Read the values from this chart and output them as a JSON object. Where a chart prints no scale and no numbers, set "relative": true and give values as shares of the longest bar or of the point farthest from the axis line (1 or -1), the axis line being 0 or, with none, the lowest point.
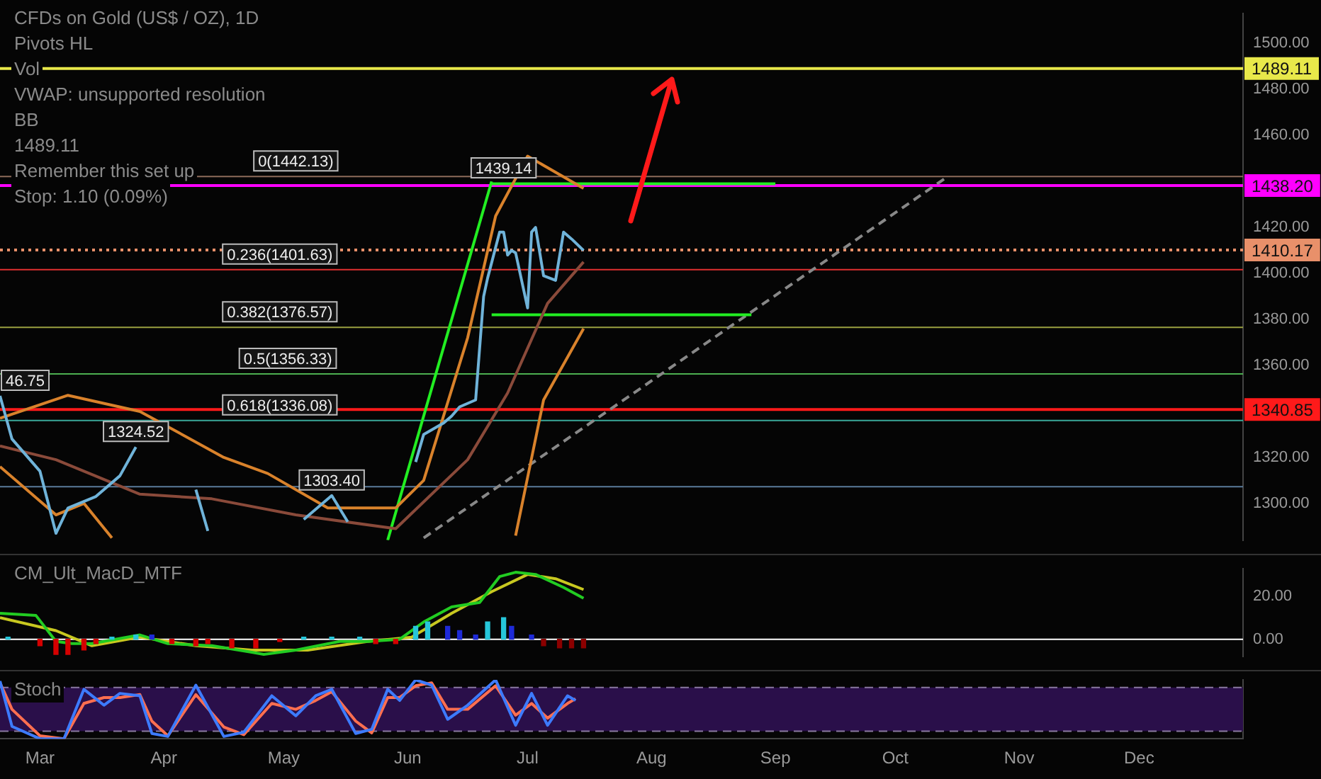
{
  "chart_data": [
    {
      "type": "line",
      "title": "CFDs on Gold (US$ / OZ), 1D",
      "annotations": [
        "Pivots HL",
        "Vol",
        "VWAP: unsupported resolution",
        "BB",
        {
          "text": "46.75",
          "x": "--02-19",
          "y": 1346.75
        },
        {
          "text": "1324.52",
          "x": "--03-25",
          "y": 1324.52
        },
        {
          "text": "1303.40",
          "x": "--05-13",
          "y": 1303.4
        },
        {
          "text": "1439.14",
          "x": "--06-25",
          "y": 1439.14
        },
        "1489.11",
        {
          "text": "0(1442.13)",
          "x": "--05-04",
          "y": 1442.13
        },
        {
          "text": "0.236(1401.63)",
          "x": "--04-30",
          "y": 1401.63
        },
        {
          "text": "0.382(1376.57)",
          "x": "--04-30",
          "y": 1376.57
        },
        {
          "text": "0.5(1356.33)",
          "x": "--05-02",
          "y": 1356.33
        },
        {
          "text": "0.618(1336.08)",
          "x": "--04-30",
          "y": 1336.08
        },
        "Remember this set up",
        "Stop: 1.10 (0.09%)"
      ],
      "xlim": [
        "--02-19",
        "--12-27"
      ],
      "ylim": [
        1284,
        1513
      ],
      "yticks": [
        {
          "value": 1300,
          "label": "1300.00"
        },
        {
          "value": 1320,
          "label": "1320.00"
        },
        {
          "value": 1360,
          "label": "1360.00"
        },
        {
          "value": 1380,
          "label": "1380.00"
        },
        {
          "value": 1400,
          "label": "1400.00"
        },
        {
          "value": 1420,
          "label": "1420.00"
        },
        {
          "value": 1460,
          "label": "1460.00"
        },
        {
          "value": 1480,
          "label": "1480.00"
        },
        {
          "value": 1500,
          "label": "1500.00"
        }
      ],
      "tick_labels": "y",
      "legend": false,
      "ref_lines": [
        {
          "axis": "y",
          "value": 1442.13,
          "color": "#8c6a5a"
        },
        {
          "axis": "y",
          "value": 1401.63,
          "color": "#e03030"
        },
        {
          "axis": "y",
          "value": 1376.57,
          "color": "#9aa040"
        },
        {
          "axis": "y",
          "value": 1356.33,
          "color": "#4caf50"
        },
        {
          "axis": "y",
          "value": 1336.08,
          "color": "#3aa89a"
        },
        {
          "axis": "y",
          "value": 1307.25,
          "color": "#5a7a9a"
        },
        {
          "axis": "y",
          "value": 1489.11,
          "label": "1489.11",
          "color": "#e8e84a"
        },
        {
          "axis": "y",
          "value": 1438.2,
          "label": "1438.20",
          "color": "#ff00ff"
        },
        {
          "axis": "y",
          "value": 1410.17,
          "label": "1410.17",
          "color": "#e8906a",
          "line_style": "dotted"
        },
        {
          "axis": "y",
          "value": 1340.85,
          "label": "1340.85",
          "color": "#ff1a1a"
        }
      ],
      "series": [
        {
          "color": "#6fb3d9",
          "x": [
            "--02-19",
            "--02-22",
            "--03-01",
            "--03-05",
            "--03-08",
            "--03-15",
            "--03-21",
            "--03-25",
            "--03-28",
            "--04-02",
            "--04-05",
            "--04-09",
            "--04-12",
            "--04-23",
            "--05-06",
            "--05-13",
            "--05-17",
            "--05-24",
            "--06-03",
            "--06-05",
            "--06-10",
            "--06-12",
            "--06-14",
            "--06-18",
            "--06-20",
            "--06-21",
            "--06-24",
            "--06-25",
            "--06-26",
            "--06-27",
            "--06-28",
            "--07-01",
            "--07-02",
            "--07-03",
            "--07-05",
            "--07-08",
            "--07-10",
            "--07-12",
            "--07-15"
          ],
          "values": [
            1346.75,
            1328,
            1314,
            1287,
            1298,
            1303,
            1312,
            1324.52,
            null,
            null,
            null,
            1306,
            1288,
            null,
            1293,
            1303.4,
            1292,
            null,
            1318,
            1330,
            1335,
            1338,
            1342,
            1345,
            1390,
            1398,
            1418,
            1418,
            1408,
            1410,
            1409,
            1385,
            1418,
            1420,
            1399,
            1397,
            1418,
            1415,
            1410
          ]
        },
        {
          "color": "#d9822b",
          "x": [
            "--02-19",
            "--03-08",
            "--03-26",
            "--04-16",
            "--04-27",
            "--05-12",
            "--05-29",
            "--06-05",
            "--06-16",
            "--06-23",
            "--07-01",
            "--07-10",
            "--07-15"
          ],
          "values": [
            1337,
            1347,
            1340,
            1320,
            1313,
            1298,
            1298,
            1310,
            1372,
            1425,
            1451,
            1442,
            1437
          ]
        },
        {
          "color": "#8a4a3a",
          "x": [
            "--02-19",
            "--03-05",
            "--03-26",
            "--04-13",
            "--05-04",
            "--05-29",
            "--06-16",
            "--06-26",
            "--07-06",
            "--07-15"
          ],
          "values": [
            1325,
            1319,
            1304,
            1302,
            1295,
            1289,
            1319,
            1348,
            1387,
            1405
          ]
        },
        {
          "color": "#d9822b",
          "x": [
            "--02-19",
            "--03-05",
            "--03-12",
            "--03-19",
            "--04-01",
            "--06-28",
            "--07-05",
            "--07-15"
          ],
          "values": [
            1316,
            1295,
            1300,
            1285,
            null,
            1286,
            1345,
            1376
          ]
        },
        {
          "color": "#22ee22",
          "x": [
            "--05-27",
            "--06-22"
          ],
          "values": [
            1284,
            1440
          ]
        },
        {
          "color": "#22ee22",
          "x": [
            "--06-22",
            "--09-01"
          ],
          "values": [
            1439,
            1439
          ]
        },
        {
          "color": "#22ee22",
          "x": [
            "--06-22",
            "--08-26"
          ],
          "values": [
            1382,
            1382
          ]
        },
        {
          "color": "#888888",
          "line_style": "dashed",
          "x": [
            "--06-05",
            "--10-14"
          ],
          "values": [
            1285,
            1442
          ]
        }
      ]
    },
    {
      "type": "line",
      "title": "CM_Ult_MacD_MTF",
      "xlim": [
        "--02-19",
        "--12-27"
      ],
      "ylim": [
        -7.9,
        32.6
      ],
      "yticks": [
        {
          "value": 0,
          "label": "0.00"
        },
        {
          "value": 20,
          "label": "20.00"
        }
      ],
      "tick_labels": "y",
      "legend": false,
      "ref_lines": [
        {
          "axis": "y",
          "value": 0,
          "color": "#ffffff"
        }
      ],
      "series": [
        {
          "type": "bar",
          "x": [
            "--02-21",
            "--03-01",
            "--03-05",
            "--03-08",
            "--03-12",
            "--03-15",
            "--03-19",
            "--03-25",
            "--03-29",
            "--04-03",
            "--04-09",
            "--04-12",
            "--04-18",
            "--04-24",
            "--04-30",
            "--05-06",
            "--05-13",
            "--05-20",
            "--05-24",
            "--05-29",
            "--06-03",
            "--06-06",
            "--06-11",
            "--06-14",
            "--06-18",
            "--06-21",
            "--06-25",
            "--06-27",
            "--07-02",
            "--07-05",
            "--07-09",
            "--07-12",
            "--07-15"
          ],
          "values": [
            1,
            -3,
            -7,
            -7,
            -5,
            -2,
            1,
            2,
            2,
            -2,
            -3,
            -2,
            -4,
            -4,
            -1,
            1,
            1,
            1,
            -2,
            -2,
            6,
            8,
            6,
            4,
            2,
            8,
            10,
            6,
            2,
            -3,
            -4,
            -4,
            -4
          ],
          "colors": [
            "#26c6da",
            "#d50000",
            "#d50000",
            "#d50000",
            "#d50000",
            "#d50000",
            "#26c6da",
            "#26c6da",
            "#1e2ad8",
            "#d50000",
            "#d50000",
            "#d50000",
            "#d50000",
            "#d50000",
            "#d50000",
            "#26c6da",
            "#26c6da",
            "#26c6da",
            "#d50000",
            "#d50000",
            "#26c6da",
            "#26c6da",
            "#1e2ad8",
            "#1e2ad8",
            "#1e2ad8",
            "#26c6da",
            "#26c6da",
            "#1e2ad8",
            "#1e2ad8",
            "#8b0000",
            "#8b0000",
            "#8b0000",
            "#8b0000"
          ]
        },
        {
          "color": "#22cc22",
          "x": [
            "--02-19",
            "--02-28",
            "--03-05",
            "--03-09",
            "--03-14",
            "--03-26",
            "--04-02",
            "--04-13",
            "--04-23",
            "--04-26",
            "--05-04",
            "--05-15",
            "--05-22",
            "--05-30",
            "--06-05",
            "--06-12",
            "--06-19",
            "--06-24",
            "--06-28",
            "--07-03",
            "--07-10",
            "--07-15"
          ],
          "values": [
            12,
            11,
            -1,
            -2,
            -2,
            2,
            -2,
            -3,
            -6,
            -7,
            -5,
            -1,
            -1,
            0,
            8,
            15,
            17,
            29,
            31,
            30,
            24,
            19
          ]
        },
        {
          "color": "#c8c820",
          "x": [
            "--02-19",
            "--03-05",
            "--03-14",
            "--03-26",
            "--04-09",
            "--04-23",
            "--05-07",
            "--05-22",
            "--06-02",
            "--06-12",
            "--06-22",
            "--07-01",
            "--07-08",
            "--07-15"
          ],
          "values": [
            10,
            4,
            -3,
            1,
            -3,
            -5,
            -5,
            -1,
            1,
            12,
            22,
            30,
            28,
            23
          ]
        }
      ]
    },
    {
      "type": "line",
      "title": "Stoch",
      "relative": true,
      "xlim": [
        "--02-19",
        "--12-27"
      ],
      "xticks": [
        {
          "value": "--03-01",
          "label": "Mar"
        },
        {
          "value": "--04-01",
          "label": "Apr"
        },
        {
          "value": "--05-01",
          "label": "May"
        },
        {
          "value": "--06-01",
          "label": "Jun"
        },
        {
          "value": "--07-01",
          "label": "Jul"
        },
        {
          "value": "--08-01",
          "label": "Aug"
        },
        {
          "value": "--09-01",
          "label": "Sep"
        },
        {
          "value": "--10-01",
          "label": "Oct"
        },
        {
          "value": "--11-01",
          "label": "Nov"
        },
        {
          "value": "--12-01",
          "label": "Dec"
        }
      ],
      "tick_labels": "x",
      "legend": false,
      "bands": [
        {
          "axis": "y",
          "from": 0.13,
          "to": 0.87,
          "color": "#2a0f4a"
        }
      ],
      "ref_lines": [
        {
          "axis": "y",
          "value": 0.13,
          "color": "#8a7aa0",
          "line_style": "dashed"
        },
        {
          "axis": "y",
          "value": 0.87,
          "color": "#8a7aa0",
          "line_style": "dashed"
        }
      ],
      "series": [
        {
          "color": "#3d7bff",
          "x": [
            "--02-19",
            "--02-22",
            "--03-01",
            "--03-07",
            "--03-12",
            "--03-17",
            "--03-21",
            "--03-26",
            "--03-29",
            "--04-02",
            "--04-09",
            "--04-16",
            "--04-21",
            "--04-28",
            "--05-04",
            "--05-09",
            "--05-13",
            "--05-19",
            "--05-23",
            "--05-27",
            "--05-30",
            "--06-03",
            "--06-07",
            "--06-11",
            "--06-16",
            "--06-23",
            "--06-28",
            "--07-02",
            "--07-06",
            "--07-11",
            "--07-13"
          ],
          "values": [
            0.98,
            0.21,
            0,
            0,
            0.84,
            0.57,
            0.77,
            0.73,
            0.09,
            0.04,
            0.91,
            0.04,
            0.11,
            0.73,
            0.39,
            0.73,
            0.84,
            0.09,
            0.16,
            0.84,
            0.65,
            1,
            0.91,
            0.33,
            0.57,
            1,
            0.23,
            0.77,
            0.23,
            0.73,
            0.65
          ]
        },
        {
          "color": "#ff6f50",
          "x": [
            "--02-19",
            "--02-22",
            "--03-01",
            "--03-07",
            "--03-12",
            "--03-17",
            "--03-21",
            "--03-26",
            "--03-29",
            "--04-02",
            "--04-09",
            "--04-16",
            "--04-21",
            "--04-28",
            "--05-04",
            "--05-09",
            "--05-13",
            "--05-19",
            "--05-23",
            "--05-27",
            "--05-30",
            "--06-03",
            "--06-07",
            "--06-11",
            "--06-16",
            "--06-23",
            "--06-28",
            "--07-02",
            "--07-06",
            "--07-11",
            "--07-13"
          ],
          "values": [
            0.95,
            0.5,
            0.05,
            0,
            0.6,
            0.7,
            0.7,
            0.75,
            0.3,
            0.05,
            0.75,
            0.2,
            0.07,
            0.6,
            0.5,
            0.65,
            0.8,
            0.3,
            0.1,
            0.7,
            0.7,
            0.9,
            0.95,
            0.5,
            0.5,
            0.9,
            0.4,
            0.6,
            0.35,
            0.6,
            0.68
          ]
        }
      ]
    }
  ]
}
